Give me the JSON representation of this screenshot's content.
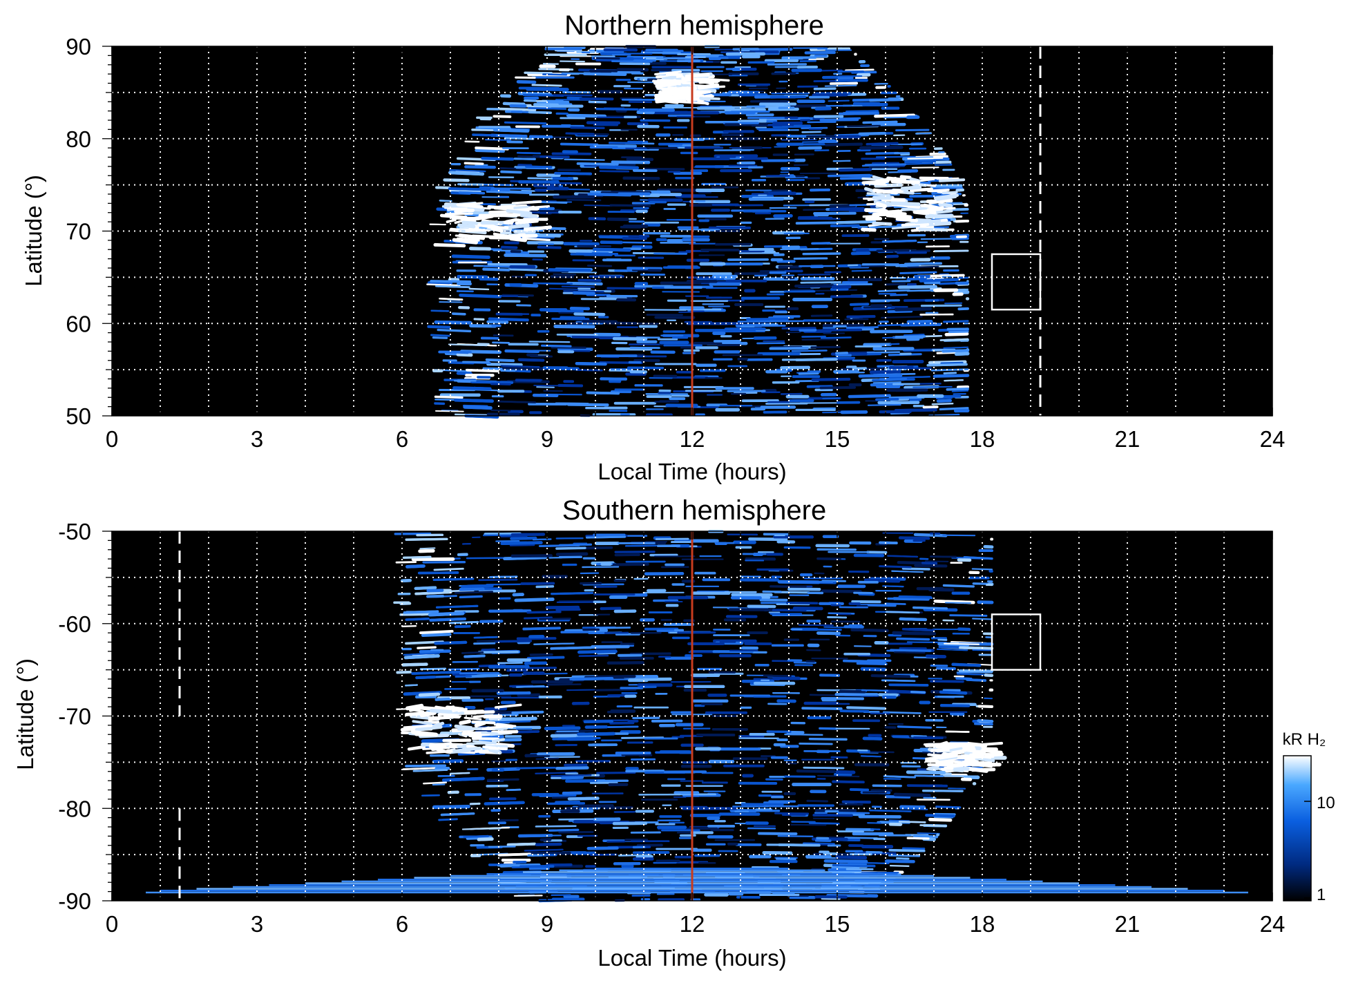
{
  "chart_data": [
    {
      "type": "heatmap",
      "title": "Northern hemisphere",
      "xlabel": "Local Time (hours)",
      "ylabel": "Latitude (°)",
      "xlim": [
        0,
        24
      ],
      "ylim": [
        50,
        90
      ],
      "xticks": [
        "0",
        "3",
        "6",
        "9",
        "12",
        "15",
        "18",
        "21",
        "24"
      ],
      "yticks": [
        "50",
        "60",
        "70",
        "80",
        "90"
      ],
      "grid": true,
      "coverage_lt": [
        6.5,
        17.7
      ],
      "noon_line_lt": 12,
      "dashed_line": {
        "lt": 19.2,
        "lat": [
          50,
          90
        ]
      },
      "box": {
        "lt": [
          18.2,
          19.2
        ],
        "lat": [
          61.5,
          67.5
        ]
      },
      "bright_arcs": [
        {
          "lt": [
            6.8,
            8.6
          ],
          "lat": [
            69,
            73
          ]
        },
        {
          "lt": [
            15.5,
            17.2
          ],
          "lat": [
            70,
            76
          ]
        },
        {
          "lt": [
            11.2,
            12.2
          ],
          "lat": [
            84,
            87
          ]
        }
      ]
    },
    {
      "type": "heatmap",
      "title": "Southern hemisphere",
      "xlabel": "Local Time (hours)",
      "ylabel": "Latitude (°)",
      "xlim": [
        0,
        24
      ],
      "ylim": [
        -90,
        -50
      ],
      "xticks": [
        "0",
        "3",
        "6",
        "9",
        "12",
        "15",
        "18",
        "21",
        "24"
      ],
      "yticks": [
        "-90",
        "-80",
        "-70",
        "-60",
        "-50"
      ],
      "grid": true,
      "coverage_lt": [
        5.8,
        18.2
      ],
      "noon_line_lt": 12,
      "dashed_line": {
        "lt": 1.4,
        "segments": [
          [
            -50,
            -70
          ],
          [
            -80,
            -90
          ]
        ]
      },
      "box": {
        "lt": [
          18.2,
          19.2
        ],
        "lat": [
          -59,
          -65
        ]
      },
      "bright_arcs": [
        {
          "lt": [
            6.0,
            8.0
          ],
          "lat": [
            -69,
            -74
          ]
        },
        {
          "lt": [
            16.8,
            18.0
          ],
          "lat": [
            -73,
            -76
          ]
        }
      ]
    }
  ],
  "colorbar": {
    "title": "kR H₂",
    "ticks": [
      "10",
      "1"
    ],
    "scale": "log",
    "colors": [
      "#000000",
      "#002a80",
      "#0a5fe0",
      "#4aa8ff",
      "#ffffff"
    ]
  },
  "colors": {
    "background": "#000000",
    "noon_line": "#c83c1e",
    "grid": "#ffffff"
  }
}
